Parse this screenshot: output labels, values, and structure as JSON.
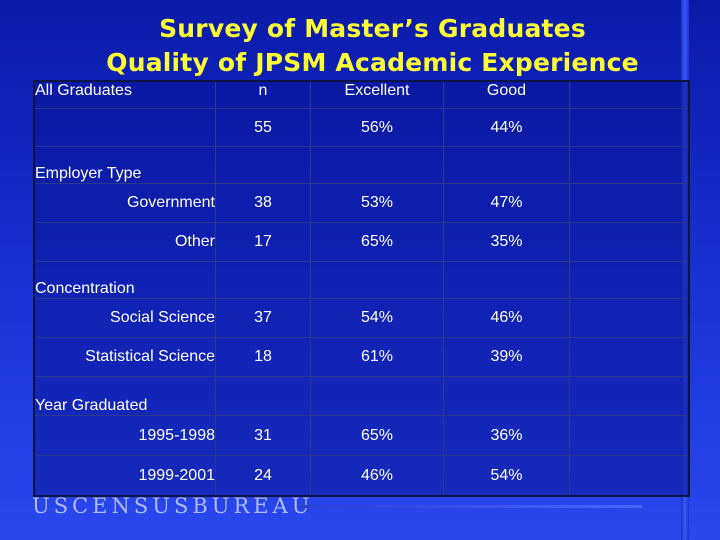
{
  "title": {
    "line1": "Survey of Master’s Graduates",
    "line2": "Quality of JPSM Academic Experience"
  },
  "colors": {
    "title": "#ffff33",
    "background": "#1a33d6",
    "text": "#ffffff"
  },
  "header": {
    "group": "All Graduates",
    "n": "n",
    "excellent": "Excellent",
    "good": "Good"
  },
  "all": {
    "n": "55",
    "excellent": "56%",
    "good": "44%"
  },
  "employer": {
    "label": "Employer Type",
    "rows": [
      {
        "label": "Government",
        "n": "38",
        "excellent": "53%",
        "good": "47%"
      },
      {
        "label": "Other",
        "n": "17",
        "excellent": "65%",
        "good": "35%"
      }
    ]
  },
  "concentration": {
    "label": "Concentration",
    "rows": [
      {
        "label": "Social Science",
        "n": "37",
        "excellent": "54%",
        "good": "46%"
      },
      {
        "label": "Statistical Science",
        "n": "18",
        "excellent": "61%",
        "good": "39%"
      }
    ]
  },
  "year": {
    "label": "Year Graduated",
    "rows": [
      {
        "label": "1995-1998",
        "n": "31",
        "excellent": "65%",
        "good": "36%"
      },
      {
        "label": "1999-2001",
        "n": "24",
        "excellent": "46%",
        "good": "54%"
      }
    ]
  },
  "footer": {
    "logo_text": "USCENSUSBUREAU"
  }
}
